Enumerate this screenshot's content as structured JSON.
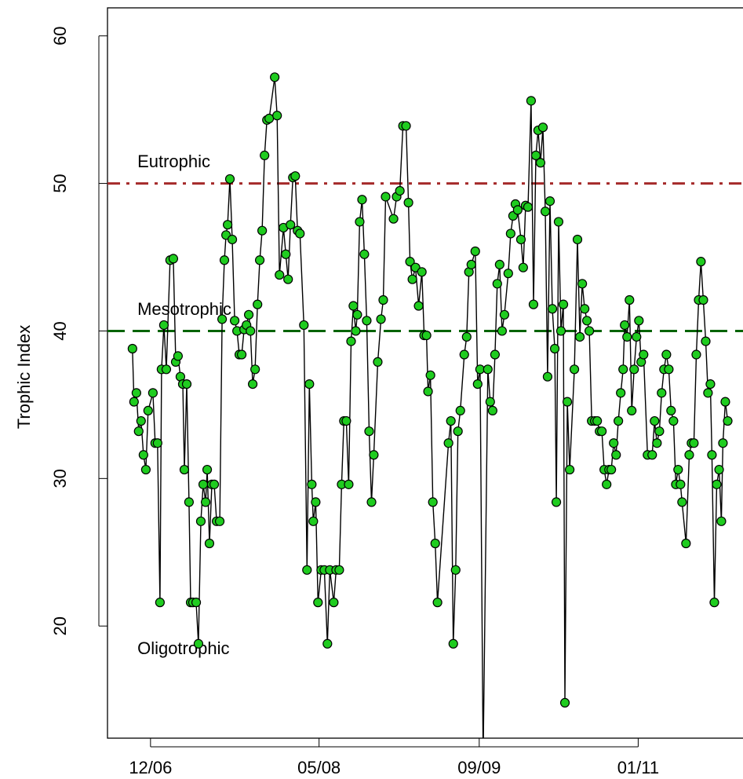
{
  "chart_data": {
    "type": "line",
    "ylabel": "Trophic Index",
    "xlim": [
      2006.56,
      2011.89
    ],
    "ylim": [
      12.4,
      61.9
    ],
    "xticks": [
      {
        "value": 2006.92,
        "label": "12/06"
      },
      {
        "value": 2008.33,
        "label": "05/08"
      },
      {
        "value": 2009.67,
        "label": "09/09"
      },
      {
        "value": 2011.0,
        "label": "01/11"
      }
    ],
    "yticks": [
      20,
      30,
      40,
      50,
      60
    ],
    "color": "#1fcc1f",
    "line_color": "#000000",
    "x": [
      2006.769,
      2006.782,
      2006.802,
      2006.821,
      2006.841,
      2006.861,
      2006.881,
      2006.9,
      2006.94,
      2006.959,
      2006.979,
      2006.999,
      2007.012,
      2007.032,
      2007.052,
      2007.084,
      2007.111,
      2007.131,
      2007.15,
      2007.17,
      2007.19,
      2007.203,
      2007.223,
      2007.242,
      2007.256,
      2007.275,
      2007.302,
      2007.321,
      2007.341,
      2007.361,
      2007.381,
      2007.394,
      2007.413,
      2007.433,
      2007.453,
      2007.473,
      2007.499,
      2007.519,
      2007.538,
      2007.552,
      2007.565,
      2007.584,
      2007.604,
      2007.624,
      2007.644,
      2007.663,
      2007.683,
      2007.703,
      2007.723,
      2007.742,
      2007.756,
      2007.775,
      2007.795,
      2007.815,
      2007.834,
      2007.854,
      2007.874,
      2007.894,
      2007.913,
      2007.959,
      2007.979,
      2007.999,
      2008.032,
      2008.052,
      2008.071,
      2008.091,
      2008.111,
      2008.131,
      2008.15,
      2008.17,
      2008.203,
      2008.229,
      2008.249,
      2008.269,
      2008.282,
      2008.302,
      2008.321,
      2008.348,
      2008.374,
      2008.4,
      2008.42,
      2008.453,
      2008.473,
      2008.499,
      2008.519,
      2008.538,
      2008.558,
      2008.578,
      2008.598,
      2008.617,
      2008.637,
      2008.65,
      2008.67,
      2008.69,
      2008.709,
      2008.729,
      2008.749,
      2008.769,
      2008.788,
      2008.821,
      2008.848,
      2008.867,
      2008.887,
      2008.953,
      2008.979,
      2009.006,
      2009.032,
      2009.058,
      2009.078,
      2009.091,
      2009.111,
      2009.137,
      2009.163,
      2009.19,
      2009.209,
      2009.229,
      2009.242,
      2009.262,
      2009.282,
      2009.302,
      2009.321,
      2009.413,
      2009.433,
      2009.453,
      2009.473,
      2009.492,
      2009.512,
      2009.545,
      2009.565,
      2009.584,
      2009.604,
      2009.637,
      2009.657,
      2009.677,
      2009.703,
      2009.742,
      2009.762,
      2009.782,
      2009.802,
      2009.821,
      2009.841,
      2009.861,
      2009.881,
      2009.913,
      2009.933,
      2009.953,
      2009.973,
      2009.992,
      2010.019,
      2010.038,
      2010.058,
      2010.078,
      2010.104,
      2010.124,
      2010.144,
      2010.163,
      2010.183,
      2010.203,
      2010.223,
      2010.242,
      2010.262,
      2010.282,
      2010.302,
      2010.315,
      2010.334,
      2010.354,
      2010.374,
      2010.387,
      2010.407,
      2010.427,
      2010.466,
      2010.492,
      2010.512,
      2010.532,
      2010.552,
      2010.571,
      2010.591,
      2010.611,
      2010.637,
      2010.657,
      2010.677,
      2010.696,
      2010.716,
      2010.736,
      2010.756,
      2010.775,
      2010.795,
      2010.815,
      2010.834,
      2010.854,
      2010.874,
      2010.887,
      2010.907,
      2010.927,
      2010.946,
      2010.966,
      2010.986,
      2011.006,
      2011.025,
      2011.045,
      2011.078,
      2011.117,
      2011.137,
      2011.157,
      2011.177,
      2011.196,
      2011.216,
      2011.236,
      2011.256,
      2011.275,
      2011.295,
      2011.315,
      2011.334,
      2011.354,
      2011.367,
      2011.4,
      2011.427,
      2011.446,
      2011.466,
      2011.486,
      2011.506,
      2011.525,
      2011.545,
      2011.565,
      2011.584,
      2011.604,
      2011.617,
      2011.637,
      2011.657,
      2011.677,
      2011.696,
      2011.709,
      2011.729,
      2011.749
    ],
    "values": [
      38.8,
      35.2,
      35.8,
      33.2,
      33.9,
      31.6,
      30.6,
      34.6,
      35.8,
      32.4,
      32.4,
      21.6,
      37.4,
      40.4,
      37.4,
      44.8,
      44.9,
      37.9,
      38.3,
      36.9,
      36.4,
      30.6,
      36.4,
      28.4,
      21.6,
      21.6,
      21.6,
      18.8,
      27.1,
      29.6,
      28.4,
      30.6,
      25.6,
      29.6,
      29.6,
      27.1,
      27.1,
      40.8,
      44.8,
      46.5,
      47.2,
      50.3,
      46.2,
      40.7,
      40.0,
      38.4,
      38.4,
      40.1,
      40.4,
      41.1,
      40.0,
      36.4,
      37.4,
      41.8,
      44.8,
      46.8,
      51.9,
      54.3,
      54.4,
      57.2,
      54.6,
      43.8,
      47.0,
      45.2,
      43.5,
      47.2,
      50.4,
      50.5,
      46.8,
      46.6,
      40.4,
      23.8,
      36.4,
      29.6,
      27.1,
      28.4,
      21.6,
      23.8,
      23.8,
      18.8,
      23.8,
      21.6,
      23.8,
      23.8,
      29.6,
      33.9,
      33.9,
      29.6,
      39.3,
      41.7,
      40.0,
      41.1,
      47.4,
      48.9,
      45.2,
      40.7,
      33.2,
      28.4,
      31.6,
      37.9,
      40.8,
      42.1,
      49.1,
      47.6,
      49.1,
      49.5,
      53.9,
      53.9,
      48.7,
      44.7,
      43.5,
      44.3,
      41.7,
      44.0,
      39.7,
      39.7,
      35.9,
      37.0,
      28.4,
      25.6,
      21.6,
      32.4,
      33.9,
      18.8,
      23.8,
      33.2,
      34.6,
      38.4,
      39.6,
      44.0,
      44.5,
      45.4,
      36.4,
      37.4,
      11.0,
      37.4,
      35.2,
      34.6,
      38.4,
      43.2,
      44.5,
      40.0,
      41.1,
      43.9,
      46.6,
      47.8,
      48.6,
      48.2,
      46.2,
      44.3,
      48.5,
      48.4,
      55.6,
      41.8,
      51.9,
      53.6,
      51.4,
      53.8,
      48.1,
      36.9,
      48.8,
      41.5,
      38.8,
      28.4,
      47.4,
      40.0,
      41.8,
      14.8,
      35.2,
      30.6,
      37.4,
      46.2,
      39.6,
      43.2,
      41.5,
      40.7,
      40.0,
      33.9,
      33.9,
      33.9,
      33.2,
      33.2,
      30.6,
      29.6,
      30.6,
      30.6,
      32.4,
      31.6,
      33.9,
      35.8,
      37.4,
      40.4,
      39.6,
      42.1,
      34.6,
      37.4,
      39.6,
      40.7,
      37.9,
      38.4,
      31.6,
      31.6,
      33.9,
      32.4,
      33.2,
      35.8,
      37.4,
      38.4,
      37.4,
      34.6,
      33.9,
      29.6,
      30.6,
      29.6,
      28.4,
      25.6,
      31.6,
      32.4,
      32.4,
      38.4,
      42.1,
      44.7,
      42.1,
      39.3,
      35.8,
      36.4,
      31.6,
      21.6,
      29.6,
      30.6,
      27.1,
      32.4,
      35.2,
      33.9
    ],
    "hlines": [
      {
        "y": 50,
        "color": "#a52a2a",
        "dash": "dashdot"
      },
      {
        "y": 40,
        "color": "#006400",
        "dash": "dashed"
      }
    ],
    "annotations": [
      {
        "text": "Eutrophic",
        "x": 2006.81,
        "y": 51.1,
        "color": "#a52a2a"
      },
      {
        "text": "Mesotrophic",
        "x": 2006.81,
        "y": 41.1,
        "color": "#006400"
      },
      {
        "text": "Oligotrophic",
        "x": 2006.81,
        "y": 18.1,
        "color": "#0000ff"
      }
    ]
  }
}
